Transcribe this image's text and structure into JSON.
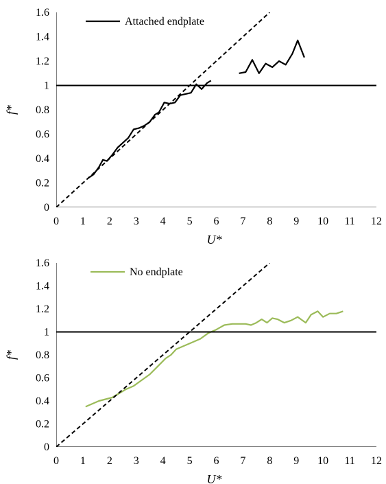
{
  "chart_data": [
    {
      "type": "line",
      "title": "",
      "xlabel": "U*",
      "ylabel": "f*",
      "xlim": [
        0,
        12
      ],
      "ylim": [
        0,
        1.6
      ],
      "x_ticks": [
        "0",
        "1",
        "2",
        "3",
        "4",
        "5",
        "6",
        "7",
        "8",
        "9",
        "10",
        "11",
        "12"
      ],
      "y_ticks": [
        "0",
        "0.2",
        "0.4",
        "0.6",
        "0.8",
        "1",
        "1.2",
        "1.4",
        "1.6"
      ],
      "grid": false,
      "legend_position": "top-left",
      "series": [
        {
          "name": "Attached endplate",
          "color": "#000000",
          "style": "solid",
          "segments": [
            [
              [
                1.2,
                0.24
              ],
              [
                1.4,
                0.27
              ],
              [
                1.6,
                0.33
              ],
              [
                1.75,
                0.39
              ],
              [
                1.9,
                0.38
              ],
              [
                2.1,
                0.43
              ],
              [
                2.3,
                0.49
              ],
              [
                2.5,
                0.53
              ],
              [
                2.7,
                0.57
              ],
              [
                2.9,
                0.64
              ],
              [
                3.1,
                0.65
              ],
              [
                3.3,
                0.67
              ],
              [
                3.5,
                0.7
              ],
              [
                3.7,
                0.76
              ],
              [
                3.85,
                0.78
              ],
              [
                4.05,
                0.86
              ],
              [
                4.25,
                0.85
              ],
              [
                4.45,
                0.86
              ],
              [
                4.65,
                0.92
              ],
              [
                4.85,
                0.93
              ],
              [
                5.05,
                0.94
              ],
              [
                5.25,
                1.01
              ],
              [
                5.45,
                0.97
              ],
              [
                5.65,
                1.02
              ],
              [
                5.8,
                1.04
              ]
            ],
            [
              [
                6.85,
                1.1
              ],
              [
                7.1,
                1.11
              ],
              [
                7.35,
                1.21
              ],
              [
                7.6,
                1.1
              ],
              [
                7.85,
                1.18
              ],
              [
                8.1,
                1.15
              ],
              [
                8.35,
                1.2
              ],
              [
                8.6,
                1.17
              ],
              [
                8.85,
                1.26
              ],
              [
                9.05,
                1.37
              ],
              [
                9.3,
                1.23
              ]
            ]
          ]
        },
        {
          "name": "",
          "color": "#000000",
          "style": "dashed",
          "segments": [
            [
              [
                0,
                0
              ],
              [
                8,
                1.6
              ]
            ]
          ]
        },
        {
          "name": "",
          "color": "#000000",
          "style": "solid",
          "segments": [
            [
              [
                0,
                1
              ],
              [
                12,
                1
              ]
            ]
          ]
        }
      ]
    },
    {
      "type": "line",
      "title": "",
      "xlabel": "U*",
      "ylabel": "f*",
      "xlim": [
        0,
        12
      ],
      "ylim": [
        0,
        1.6
      ],
      "x_ticks": [
        "0",
        "1",
        "2",
        "3",
        "4",
        "5",
        "6",
        "7",
        "8",
        "9",
        "10",
        "11",
        "12"
      ],
      "y_ticks": [
        "0",
        "0.2",
        "0.4",
        "0.6",
        "0.8",
        "1",
        "1.2",
        "1.4",
        "1.6"
      ],
      "grid": false,
      "legend_position": "top-left",
      "series": [
        {
          "name": "No endplate",
          "color": "#9bbb59",
          "style": "solid",
          "segments": [
            [
              [
                1.1,
                0.35
              ],
              [
                1.6,
                0.4
              ],
              [
                2.1,
                0.43
              ],
              [
                2.6,
                0.5
              ],
              [
                2.9,
                0.53
              ],
              [
                3.2,
                0.58
              ],
              [
                3.5,
                0.63
              ],
              [
                3.8,
                0.7
              ],
              [
                4.1,
                0.77
              ],
              [
                4.3,
                0.8
              ],
              [
                4.5,
                0.85
              ],
              [
                4.8,
                0.88
              ],
              [
                5.1,
                0.91
              ],
              [
                5.4,
                0.94
              ],
              [
                5.7,
                0.99
              ],
              [
                6.0,
                1.02
              ],
              [
                6.3,
                1.06
              ],
              [
                6.6,
                1.07
              ],
              [
                6.9,
                1.07
              ],
              [
                7.1,
                1.07
              ],
              [
                7.3,
                1.06
              ],
              [
                7.5,
                1.08
              ],
              [
                7.7,
                1.11
              ],
              [
                7.9,
                1.08
              ],
              [
                8.1,
                1.12
              ],
              [
                8.3,
                1.11
              ],
              [
                8.55,
                1.08
              ],
              [
                8.8,
                1.1
              ],
              [
                9.05,
                1.13
              ],
              [
                9.35,
                1.08
              ],
              [
                9.55,
                1.15
              ],
              [
                9.8,
                1.18
              ],
              [
                10.0,
                1.13
              ],
              [
                10.25,
                1.16
              ],
              [
                10.5,
                1.16
              ],
              [
                10.75,
                1.18
              ]
            ]
          ]
        },
        {
          "name": "",
          "color": "#000000",
          "style": "dashed",
          "segments": [
            [
              [
                0,
                0
              ],
              [
                8,
                1.6
              ]
            ]
          ]
        },
        {
          "name": "",
          "color": "#000000",
          "style": "solid",
          "segments": [
            [
              [
                0,
                1
              ],
              [
                12,
                1
              ]
            ]
          ]
        }
      ]
    }
  ]
}
